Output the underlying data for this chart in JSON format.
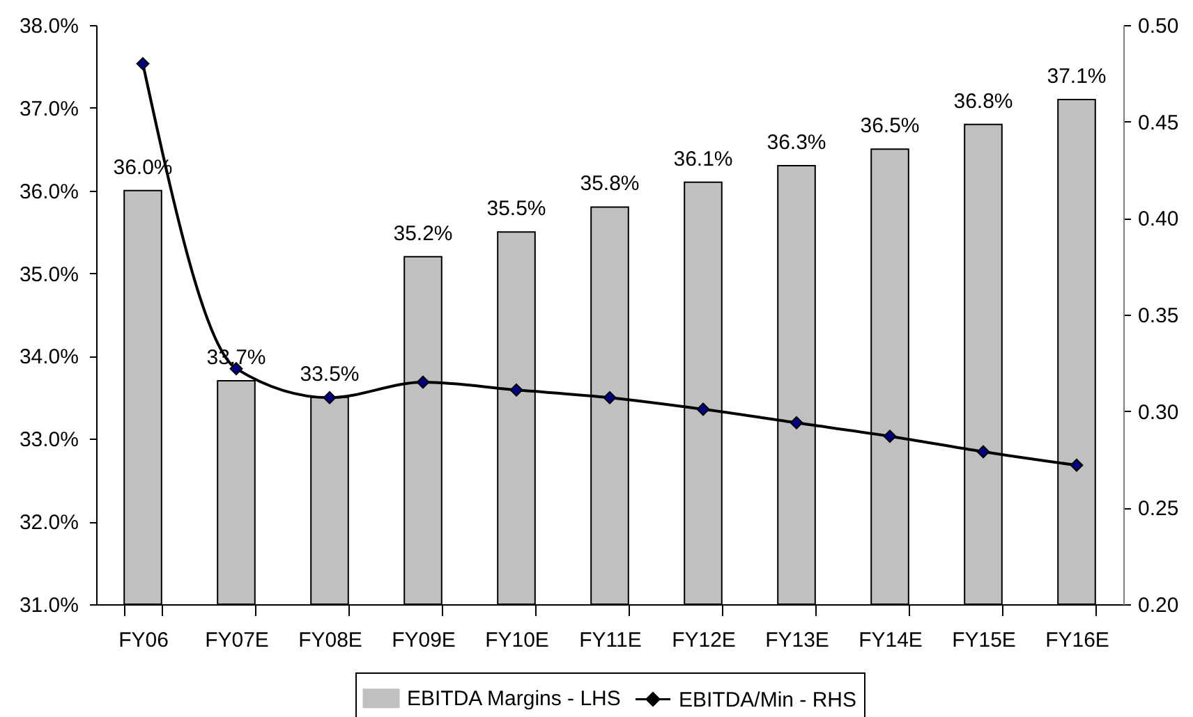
{
  "chart_data": {
    "type": "bar",
    "categories": [
      "FY06",
      "FY07E",
      "FY08E",
      "FY09E",
      "FY10E",
      "FY11E",
      "FY12E",
      "FY13E",
      "FY14E",
      "FY15E",
      "FY16E"
    ],
    "series": [
      {
        "name": "EBITDA Margins - LHS",
        "color": "#c0c0c0",
        "values": [
          36.0,
          33.7,
          33.5,
          35.2,
          35.5,
          35.8,
          36.1,
          36.3,
          36.5,
          36.8,
          37.1
        ],
        "value_labels": [
          "36.0%",
          "33.7%",
          "33.5%",
          "35.2%",
          "35.5%",
          "35.8%",
          "36.1%",
          "36.3%",
          "36.5%",
          "36.8%",
          "37.1%"
        ]
      },
      {
        "name": "EBITDA/Min - RHS",
        "type": "line",
        "axis": "y2",
        "color": "#000000",
        "values": [
          0.48,
          0.322,
          0.307,
          0.315,
          0.311,
          0.307,
          0.301,
          0.294,
          0.287,
          0.279,
          0.272
        ]
      }
    ],
    "ylim": [
      31,
      38
    ],
    "yticks": [
      {
        "value": 31,
        "label": "31.0%"
      },
      {
        "value": 32,
        "label": "32.0%"
      },
      {
        "value": 33,
        "label": "33.0%"
      },
      {
        "value": 34,
        "label": "34.0%"
      },
      {
        "value": 35,
        "label": "35.0%"
      },
      {
        "value": 36,
        "label": "36.0%"
      },
      {
        "value": 37,
        "label": "37.0%"
      },
      {
        "value": 38,
        "label": "38.0%"
      }
    ],
    "y2lim": [
      0.2,
      0.5
    ],
    "y2ticks": [
      {
        "value": 0.2,
        "label": "0.20"
      },
      {
        "value": 0.25,
        "label": "0.25"
      },
      {
        "value": 0.3,
        "label": "0.30"
      },
      {
        "value": 0.35,
        "label": "0.35"
      },
      {
        "value": 0.4,
        "label": "0.40"
      },
      {
        "value": 0.45,
        "label": "0.45"
      },
      {
        "value": 0.5,
        "label": "0.50"
      }
    ],
    "legend": "bottom",
    "marker": "diamond",
    "line_style": "solid"
  }
}
